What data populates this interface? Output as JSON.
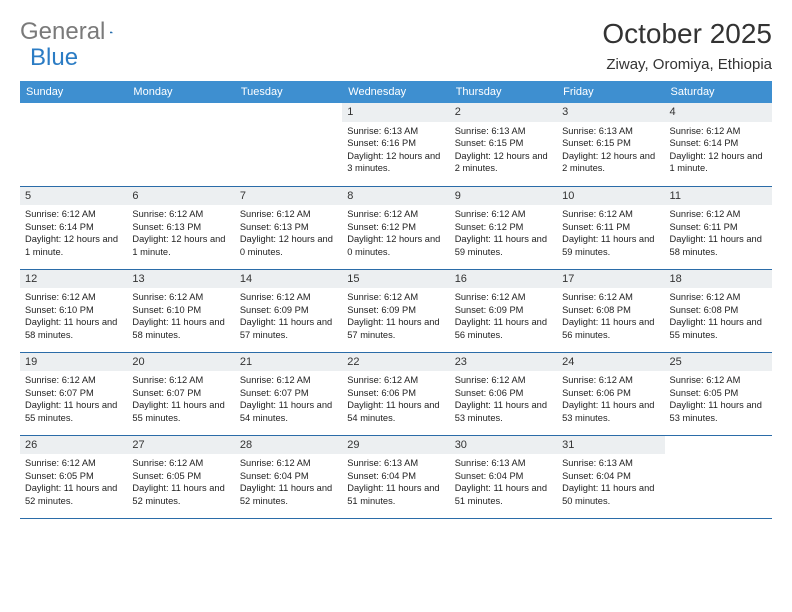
{
  "brand": {
    "part1": "General",
    "part2": "Blue"
  },
  "title": "October 2025",
  "location": "Ziway, Oromiya, Ethiopia",
  "colors": {
    "header_bg": "#3e8fd0",
    "header_text": "#ffffff",
    "row_border": "#2b6ca8",
    "daynum_bg": "#eceff1",
    "logo_accent": "#2b7cc4"
  },
  "weekdays": [
    "Sunday",
    "Monday",
    "Tuesday",
    "Wednesday",
    "Thursday",
    "Friday",
    "Saturday"
  ],
  "weeks": [
    [
      null,
      null,
      null,
      {
        "n": "1",
        "sr": "Sunrise: 6:13 AM",
        "ss": "Sunset: 6:16 PM",
        "dl": "Daylight: 12 hours and 3 minutes."
      },
      {
        "n": "2",
        "sr": "Sunrise: 6:13 AM",
        "ss": "Sunset: 6:15 PM",
        "dl": "Daylight: 12 hours and 2 minutes."
      },
      {
        "n": "3",
        "sr": "Sunrise: 6:13 AM",
        "ss": "Sunset: 6:15 PM",
        "dl": "Daylight: 12 hours and 2 minutes."
      },
      {
        "n": "4",
        "sr": "Sunrise: 6:12 AM",
        "ss": "Sunset: 6:14 PM",
        "dl": "Daylight: 12 hours and 1 minute."
      }
    ],
    [
      {
        "n": "5",
        "sr": "Sunrise: 6:12 AM",
        "ss": "Sunset: 6:14 PM",
        "dl": "Daylight: 12 hours and 1 minute."
      },
      {
        "n": "6",
        "sr": "Sunrise: 6:12 AM",
        "ss": "Sunset: 6:13 PM",
        "dl": "Daylight: 12 hours and 1 minute."
      },
      {
        "n": "7",
        "sr": "Sunrise: 6:12 AM",
        "ss": "Sunset: 6:13 PM",
        "dl": "Daylight: 12 hours and 0 minutes."
      },
      {
        "n": "8",
        "sr": "Sunrise: 6:12 AM",
        "ss": "Sunset: 6:12 PM",
        "dl": "Daylight: 12 hours and 0 minutes."
      },
      {
        "n": "9",
        "sr": "Sunrise: 6:12 AM",
        "ss": "Sunset: 6:12 PM",
        "dl": "Daylight: 11 hours and 59 minutes."
      },
      {
        "n": "10",
        "sr": "Sunrise: 6:12 AM",
        "ss": "Sunset: 6:11 PM",
        "dl": "Daylight: 11 hours and 59 minutes."
      },
      {
        "n": "11",
        "sr": "Sunrise: 6:12 AM",
        "ss": "Sunset: 6:11 PM",
        "dl": "Daylight: 11 hours and 58 minutes."
      }
    ],
    [
      {
        "n": "12",
        "sr": "Sunrise: 6:12 AM",
        "ss": "Sunset: 6:10 PM",
        "dl": "Daylight: 11 hours and 58 minutes."
      },
      {
        "n": "13",
        "sr": "Sunrise: 6:12 AM",
        "ss": "Sunset: 6:10 PM",
        "dl": "Daylight: 11 hours and 58 minutes."
      },
      {
        "n": "14",
        "sr": "Sunrise: 6:12 AM",
        "ss": "Sunset: 6:09 PM",
        "dl": "Daylight: 11 hours and 57 minutes."
      },
      {
        "n": "15",
        "sr": "Sunrise: 6:12 AM",
        "ss": "Sunset: 6:09 PM",
        "dl": "Daylight: 11 hours and 57 minutes."
      },
      {
        "n": "16",
        "sr": "Sunrise: 6:12 AM",
        "ss": "Sunset: 6:09 PM",
        "dl": "Daylight: 11 hours and 56 minutes."
      },
      {
        "n": "17",
        "sr": "Sunrise: 6:12 AM",
        "ss": "Sunset: 6:08 PM",
        "dl": "Daylight: 11 hours and 56 minutes."
      },
      {
        "n": "18",
        "sr": "Sunrise: 6:12 AM",
        "ss": "Sunset: 6:08 PM",
        "dl": "Daylight: 11 hours and 55 minutes."
      }
    ],
    [
      {
        "n": "19",
        "sr": "Sunrise: 6:12 AM",
        "ss": "Sunset: 6:07 PM",
        "dl": "Daylight: 11 hours and 55 minutes."
      },
      {
        "n": "20",
        "sr": "Sunrise: 6:12 AM",
        "ss": "Sunset: 6:07 PM",
        "dl": "Daylight: 11 hours and 55 minutes."
      },
      {
        "n": "21",
        "sr": "Sunrise: 6:12 AM",
        "ss": "Sunset: 6:07 PM",
        "dl": "Daylight: 11 hours and 54 minutes."
      },
      {
        "n": "22",
        "sr": "Sunrise: 6:12 AM",
        "ss": "Sunset: 6:06 PM",
        "dl": "Daylight: 11 hours and 54 minutes."
      },
      {
        "n": "23",
        "sr": "Sunrise: 6:12 AM",
        "ss": "Sunset: 6:06 PM",
        "dl": "Daylight: 11 hours and 53 minutes."
      },
      {
        "n": "24",
        "sr": "Sunrise: 6:12 AM",
        "ss": "Sunset: 6:06 PM",
        "dl": "Daylight: 11 hours and 53 minutes."
      },
      {
        "n": "25",
        "sr": "Sunrise: 6:12 AM",
        "ss": "Sunset: 6:05 PM",
        "dl": "Daylight: 11 hours and 53 minutes."
      }
    ],
    [
      {
        "n": "26",
        "sr": "Sunrise: 6:12 AM",
        "ss": "Sunset: 6:05 PM",
        "dl": "Daylight: 11 hours and 52 minutes."
      },
      {
        "n": "27",
        "sr": "Sunrise: 6:12 AM",
        "ss": "Sunset: 6:05 PM",
        "dl": "Daylight: 11 hours and 52 minutes."
      },
      {
        "n": "28",
        "sr": "Sunrise: 6:12 AM",
        "ss": "Sunset: 6:04 PM",
        "dl": "Daylight: 11 hours and 52 minutes."
      },
      {
        "n": "29",
        "sr": "Sunrise: 6:13 AM",
        "ss": "Sunset: 6:04 PM",
        "dl": "Daylight: 11 hours and 51 minutes."
      },
      {
        "n": "30",
        "sr": "Sunrise: 6:13 AM",
        "ss": "Sunset: 6:04 PM",
        "dl": "Daylight: 11 hours and 51 minutes."
      },
      {
        "n": "31",
        "sr": "Sunrise: 6:13 AM",
        "ss": "Sunset: 6:04 PM",
        "dl": "Daylight: 11 hours and 50 minutes."
      },
      null
    ]
  ]
}
